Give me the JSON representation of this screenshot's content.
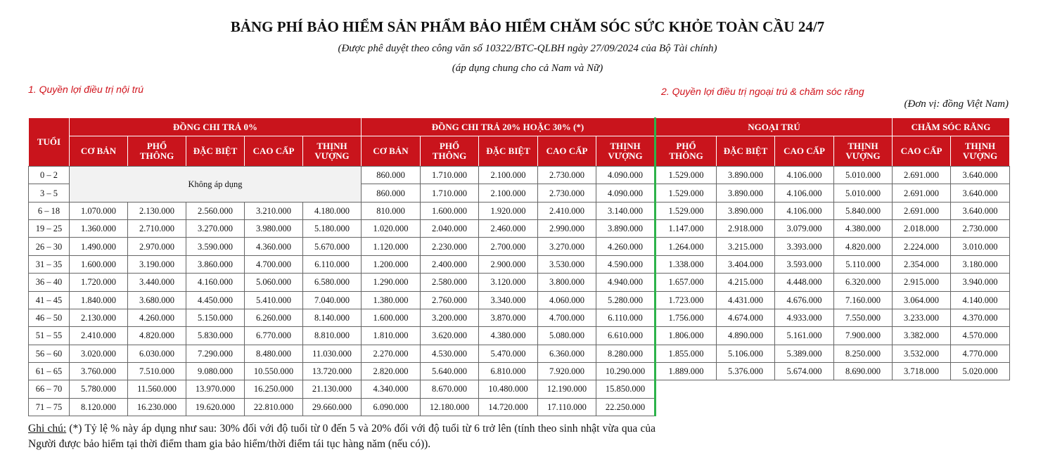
{
  "header": {
    "title": "BẢNG PHÍ BẢO HIỂM SẢN PHẨM BẢO HIỂM CHĂM SÓC SỨC KHỎE TOÀN CẦU 24/7",
    "subtitle": "(Được phê duyệt theo công văn số 10322/BTC-QLBH ngày 27/09/2024 của Bộ Tài chính)",
    "scope": "(áp dụng chung cho cả Nam và Nữ)"
  },
  "inpatient": {
    "label": "1. Quyền lợi điều trị nội trú",
    "age_header": "TUỔI",
    "not_applicable": "Không áp dụng",
    "groups": [
      {
        "title": "ĐỒNG CHI TRẢ 0%",
        "plans": [
          "CƠ BẢN",
          "PHỔ\nTHÔNG",
          "ĐẶC BIỆT",
          "CAO CẤP",
          "THỊNH\nVƯỢNG"
        ]
      },
      {
        "title": "ĐỒNG CHI TRẢ 20% HOẶC 30% (*)",
        "plans": [
          "CƠ BẢN",
          "PHỔ\nTHÔNG",
          "ĐẶC BIỆT",
          "CAO CẤP",
          "THỊNH\nVƯỢNG"
        ]
      }
    ],
    "rows": [
      {
        "age": "0 – 2",
        "copay_20_30": [
          "860.000",
          "1.710.000",
          "2.100.000",
          "2.730.000",
          "4.090.000"
        ]
      },
      {
        "age": "3 – 5",
        "copay_20_30": [
          "860.000",
          "1.710.000",
          "2.100.000",
          "2.730.000",
          "4.090.000"
        ]
      },
      {
        "age": "6 – 18",
        "copay_0": [
          "1.070.000",
          "2.130.000",
          "2.560.000",
          "3.210.000",
          "4.180.000"
        ],
        "copay_20_30": [
          "810.000",
          "1.600.000",
          "1.920.000",
          "2.410.000",
          "3.140.000"
        ]
      },
      {
        "age": "19 – 25",
        "copay_0": [
          "1.360.000",
          "2.710.000",
          "3.270.000",
          "3.980.000",
          "5.180.000"
        ],
        "copay_20_30": [
          "1.020.000",
          "2.040.000",
          "2.460.000",
          "2.990.000",
          "3.890.000"
        ]
      },
      {
        "age": "26 – 30",
        "copay_0": [
          "1.490.000",
          "2.970.000",
          "3.590.000",
          "4.360.000",
          "5.670.000"
        ],
        "copay_20_30": [
          "1.120.000",
          "2.230.000",
          "2.700.000",
          "3.270.000",
          "4.260.000"
        ]
      },
      {
        "age": "31 – 35",
        "copay_0": [
          "1.600.000",
          "3.190.000",
          "3.860.000",
          "4.700.000",
          "6.110.000"
        ],
        "copay_20_30": [
          "1.200.000",
          "2.400.000",
          "2.900.000",
          "3.530.000",
          "4.590.000"
        ]
      },
      {
        "age": "36 – 40",
        "copay_0": [
          "1.720.000",
          "3.440.000",
          "4.160.000",
          "5.060.000",
          "6.580.000"
        ],
        "copay_20_30": [
          "1.290.000",
          "2.580.000",
          "3.120.000",
          "3.800.000",
          "4.940.000"
        ]
      },
      {
        "age": "41 – 45",
        "copay_0": [
          "1.840.000",
          "3.680.000",
          "4.450.000",
          "5.410.000",
          "7.040.000"
        ],
        "copay_20_30": [
          "1.380.000",
          "2.760.000",
          "3.340.000",
          "4.060.000",
          "5.280.000"
        ]
      },
      {
        "age": "46 – 50",
        "copay_0": [
          "2.130.000",
          "4.260.000",
          "5.150.000",
          "6.260.000",
          "8.140.000"
        ],
        "copay_20_30": [
          "1.600.000",
          "3.200.000",
          "3.870.000",
          "4.700.000",
          "6.110.000"
        ]
      },
      {
        "age": "51 – 55",
        "copay_0": [
          "2.410.000",
          "4.820.000",
          "5.830.000",
          "6.770.000",
          "8.810.000"
        ],
        "copay_20_30": [
          "1.810.000",
          "3.620.000",
          "4.380.000",
          "5.080.000",
          "6.610.000"
        ]
      },
      {
        "age": "56 – 60",
        "copay_0": [
          "3.020.000",
          "6.030.000",
          "7.290.000",
          "8.480.000",
          "11.030.000"
        ],
        "copay_20_30": [
          "2.270.000",
          "4.530.000",
          "5.470.000",
          "6.360.000",
          "8.280.000"
        ]
      },
      {
        "age": "61 – 65",
        "copay_0": [
          "3.760.000",
          "7.510.000",
          "9.080.000",
          "10.550.000",
          "13.720.000"
        ],
        "copay_20_30": [
          "2.820.000",
          "5.640.000",
          "6.810.000",
          "7.920.000",
          "10.290.000"
        ]
      },
      {
        "age": "66 – 70",
        "copay_0": [
          "5.780.000",
          "11.560.000",
          "13.970.000",
          "16.250.000",
          "21.130.000"
        ],
        "copay_20_30": [
          "4.340.000",
          "8.670.000",
          "10.480.000",
          "12.190.000",
          "15.850.000"
        ]
      },
      {
        "age": "71 – 75",
        "copay_0": [
          "8.120.000",
          "16.230.000",
          "19.620.000",
          "22.810.000",
          "29.660.000"
        ],
        "copay_20_30": [
          "6.090.000",
          "12.180.000",
          "14.720.000",
          "17.110.000",
          "22.250.000"
        ]
      }
    ]
  },
  "outpatient": {
    "label": "2. Quyền lợi điều trị ngoại trú & chăm sóc răng",
    "unit": "(Đơn vị: đồng Việt Nam)",
    "groups": [
      {
        "title": "NGOẠI TRÚ",
        "plans": [
          "PHỔ\nTHÔNG",
          "ĐẶC BIỆT",
          "CAO CẤP",
          "THỊNH\nVƯỢNG"
        ]
      },
      {
        "title": "CHĂM SÓC RĂNG",
        "plans": [
          "CAO CẤP",
          "THỊNH\nVƯỢNG"
        ]
      }
    ],
    "rows": [
      {
        "outpatient": [
          "1.529.000",
          "3.890.000",
          "4.106.000",
          "5.010.000"
        ],
        "dental": [
          "2.691.000",
          "3.640.000"
        ]
      },
      {
        "outpatient": [
          "1.529.000",
          "3.890.000",
          "4.106.000",
          "5.010.000"
        ],
        "dental": [
          "2.691.000",
          "3.640.000"
        ]
      },
      {
        "outpatient": [
          "1.529.000",
          "3.890.000",
          "4.106.000",
          "5.840.000"
        ],
        "dental": [
          "2.691.000",
          "3.640.000"
        ]
      },
      {
        "outpatient": [
          "1.147.000",
          "2.918.000",
          "3.079.000",
          "4.380.000"
        ],
        "dental": [
          "2.018.000",
          "2.730.000"
        ]
      },
      {
        "outpatient": [
          "1.264.000",
          "3.215.000",
          "3.393.000",
          "4.820.000"
        ],
        "dental": [
          "2.224.000",
          "3.010.000"
        ]
      },
      {
        "outpatient": [
          "1.338.000",
          "3.404.000",
          "3.593.000",
          "5.110.000"
        ],
        "dental": [
          "2.354.000",
          "3.180.000"
        ]
      },
      {
        "outpatient": [
          "1.657.000",
          "4.215.000",
          "4.448.000",
          "6.320.000"
        ],
        "dental": [
          "2.915.000",
          "3.940.000"
        ]
      },
      {
        "outpatient": [
          "1.723.000",
          "4.431.000",
          "4.676.000",
          "7.160.000"
        ],
        "dental": [
          "3.064.000",
          "4.140.000"
        ]
      },
      {
        "outpatient": [
          "1.756.000",
          "4.674.000",
          "4.933.000",
          "7.550.000"
        ],
        "dental": [
          "3.233.000",
          "4.370.000"
        ]
      },
      {
        "outpatient": [
          "1.806.000",
          "4.890.000",
          "5.161.000",
          "7.900.000"
        ],
        "dental": [
          "3.382.000",
          "4.570.000"
        ]
      },
      {
        "outpatient": [
          "1.855.000",
          "5.106.000",
          "5.389.000",
          "8.250.000"
        ],
        "dental": [
          "3.532.000",
          "4.770.000"
        ]
      },
      {
        "outpatient": [
          "1.889.000",
          "5.376.000",
          "5.674.000",
          "8.690.000"
        ],
        "dental": [
          "3.718.000",
          "5.020.000"
        ]
      }
    ]
  },
  "footnote": {
    "label": "Ghi chú:",
    "text": " (*) Tỷ lệ % này áp dụng như sau: 30% đối với độ tuổi từ 0 đến 5 và 20% đối với độ tuổi từ 6 trở lên (tính theo sinh nhật vừa qua của Người được bảo hiểm tại thời điểm tham gia bảo hiểm/thời điểm tái tục hàng năm (nếu có))."
  }
}
